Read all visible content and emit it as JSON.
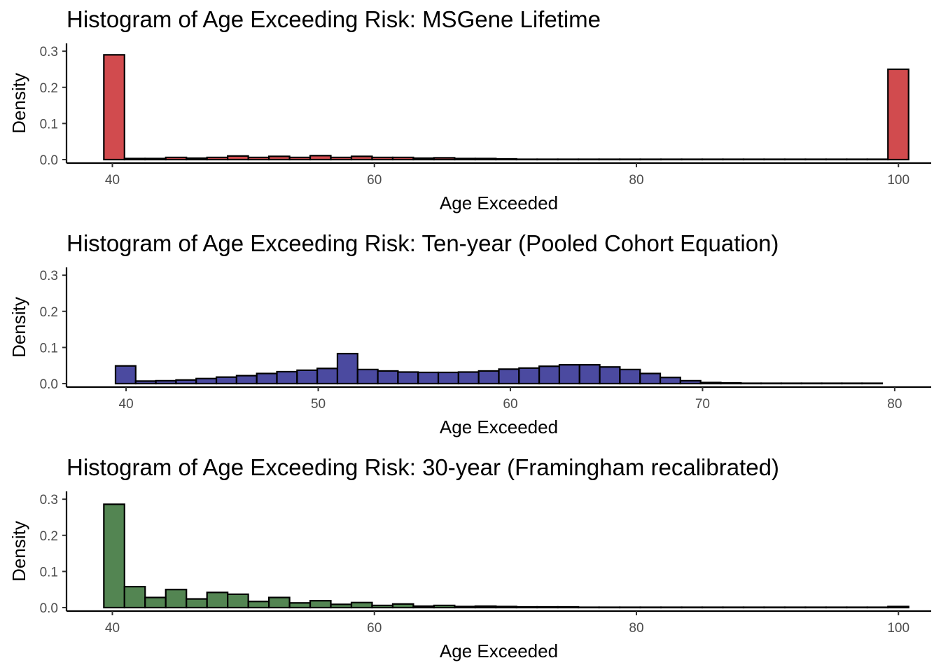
{
  "chart_data": [
    {
      "type": "bar",
      "title": "Histogram of Age Exceeding Risk: MSGene Lifetime",
      "xlabel": "Age Exceeded",
      "ylabel": "Density",
      "fill_color": "#D14B4E",
      "xlim": [
        36.5,
        102.5
      ],
      "ylim": [
        0,
        0.31
      ],
      "xticks": [
        40,
        60,
        80,
        100
      ],
      "yticks": [
        0.0,
        0.1,
        0.2,
        0.3
      ],
      "ytick_labels": [
        "0.0",
        "0.1",
        "0.2",
        "0.3"
      ],
      "bin_start": 39.35,
      "bin_width": 1.575,
      "values": [
        0.29,
        0.003,
        0.003,
        0.006,
        0.004,
        0.006,
        0.01,
        0.006,
        0.009,
        0.006,
        0.011,
        0.006,
        0.009,
        0.006,
        0.006,
        0.004,
        0.005,
        0.003,
        0.003,
        0.002,
        0.001,
        0.001,
        0.001,
        0.001,
        0.001,
        0.001,
        0.001,
        0.001,
        0.001,
        0.001,
        0.001,
        0.001,
        0.001,
        0.001,
        0.001,
        0.001,
        0.001,
        0.001,
        0.25
      ]
    },
    {
      "type": "bar",
      "title": "Histogram of Age Exceeding Risk: Ten-year (Pooled Cohort Equation)",
      "xlabel": "Age Exceeded",
      "ylabel": "Density",
      "fill_color": "#4B4AA0",
      "xlim": [
        36.9,
        81.9
      ],
      "ylim": [
        0,
        0.31
      ],
      "xticks": [
        40,
        50,
        60,
        70,
        80
      ],
      "yticks": [
        0.0,
        0.1,
        0.2,
        0.3
      ],
      "ytick_labels": [
        "0.0",
        "0.1",
        "0.2",
        "0.3"
      ],
      "bin_start": 39.45,
      "bin_width": 1.05,
      "values": [
        0.049,
        0.007,
        0.008,
        0.01,
        0.014,
        0.018,
        0.022,
        0.028,
        0.033,
        0.037,
        0.042,
        0.083,
        0.039,
        0.035,
        0.032,
        0.031,
        0.031,
        0.032,
        0.035,
        0.04,
        0.043,
        0.048,
        0.052,
        0.052,
        0.046,
        0.039,
        0.028,
        0.017,
        0.008,
        0.003,
        0.002,
        0.001,
        0.001,
        0.001,
        0.001,
        0.001,
        0.001,
        0.001
      ]
    },
    {
      "type": "bar",
      "title": "Histogram of Age Exceeding Risk: 30-year (Framingham recalibrated)",
      "xlabel": "Age Exceeded",
      "ylabel": "Density",
      "fill_color": "#538552",
      "xlim": [
        36.5,
        102.5
      ],
      "ylim": [
        0,
        0.31
      ],
      "xticks": [
        40,
        60,
        80,
        100
      ],
      "yticks": [
        0.0,
        0.1,
        0.2,
        0.3
      ],
      "ytick_labels": [
        "0.0",
        "0.1",
        "0.2",
        "0.3"
      ],
      "bin_start": 39.35,
      "bin_width": 1.575,
      "values": [
        0.286,
        0.058,
        0.028,
        0.05,
        0.024,
        0.042,
        0.037,
        0.017,
        0.028,
        0.013,
        0.019,
        0.009,
        0.014,
        0.006,
        0.01,
        0.004,
        0.006,
        0.003,
        0.004,
        0.003,
        0.002,
        0.002,
        0.002,
        0.001,
        0.001,
        0.001,
        0.001,
        0.001,
        0.001,
        0.001,
        0.001,
        0.001,
        0.001,
        0.001,
        0.001,
        0.001,
        0.001,
        0.001,
        0.003
      ]
    }
  ]
}
